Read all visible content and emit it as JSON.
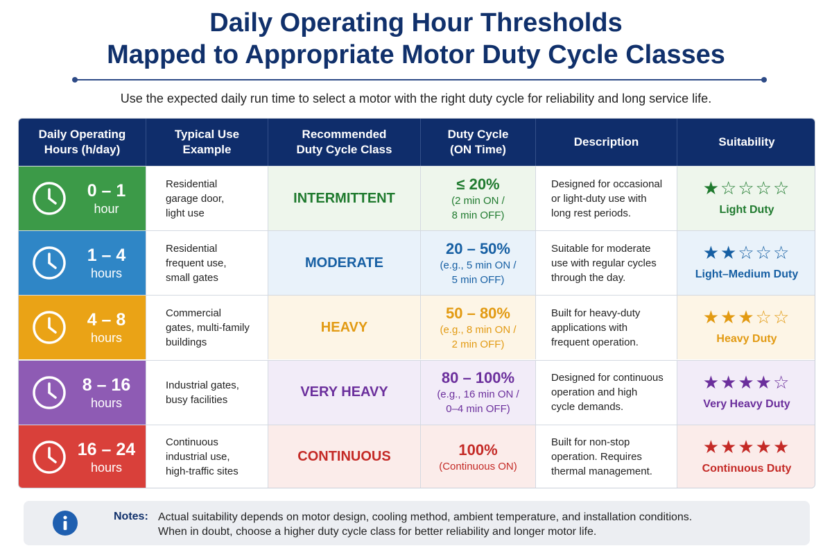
{
  "header": {
    "title_line1": "Daily Operating Hour Thresholds",
    "title_line2": "Mapped to Appropriate Motor Duty Cycle Classes",
    "subtitle": "Use the expected daily run time to select a motor with the right duty cycle for reliability and long service life."
  },
  "table": {
    "columns": [
      {
        "line1": "Daily Operating",
        "line2": "Hours (h/day)"
      },
      {
        "line1": "Typical Use",
        "line2": "Example"
      },
      {
        "line1": "Recommended",
        "line2": "Duty Cycle Class"
      },
      {
        "line1": "Duty Cycle",
        "line2": "(ON Time)"
      },
      {
        "line1": "Description",
        "line2": ""
      },
      {
        "line1": "Suitability",
        "line2": ""
      }
    ],
    "rows": [
      {
        "hours_range": "0 – 1",
        "hours_unit": "hour",
        "use": [
          "Residential",
          "garage door,",
          "light use"
        ],
        "class": "INTERMITTENT",
        "duty_value": "≤ 20%",
        "duty_sub": [
          "(2 min ON /",
          "8 min OFF)"
        ],
        "description": [
          "Designed for occasional",
          "or light-duty use with",
          "long rest periods."
        ],
        "stars_filled": 1,
        "stars_total": 5,
        "suitability": "Light Duty",
        "colors": {
          "band": "#3c9a48",
          "tint": "#eef6ec",
          "accent": "#1f7a2e"
        }
      },
      {
        "hours_range": "1 – 4",
        "hours_unit": "hours",
        "use": [
          "Residential",
          "frequent use,",
          "small gates"
        ],
        "class": "MODERATE",
        "duty_value": "20 – 50%",
        "duty_sub": [
          "(e.g., 5 min ON /",
          "5 min OFF)"
        ],
        "description": [
          "Suitable for moderate",
          "use with regular cycles",
          "through the day."
        ],
        "stars_filled": 2,
        "stars_total": 5,
        "suitability": "Light–Medium Duty",
        "colors": {
          "band": "#2f86c6",
          "tint": "#e9f2fa",
          "accent": "#165fa3"
        }
      },
      {
        "hours_range": "4 – 8",
        "hours_unit": "hours",
        "use": [
          "Commercial",
          "gates, multi-family",
          "buildings"
        ],
        "class": "HEAVY",
        "duty_value": "50 – 80%",
        "duty_sub": [
          "(e.g., 8 min ON /",
          "2 min OFF)"
        ],
        "description": [
          "Built for heavy-duty",
          "applications with",
          "frequent operation."
        ],
        "stars_filled": 3,
        "stars_total": 5,
        "suitability": "Heavy Duty",
        "colors": {
          "band": "#eaa316",
          "tint": "#fdf5e6",
          "accent": "#e29a12"
        }
      },
      {
        "hours_range": "8 – 16",
        "hours_unit": "hours",
        "use": [
          "Industrial gates,",
          "busy facilities"
        ],
        "class": "VERY HEAVY",
        "duty_value": "80 – 100%",
        "duty_sub": [
          "(e.g., 16 min ON /",
          "0–4 min OFF)"
        ],
        "description": [
          "Designed for continuous",
          "operation and high",
          "cycle demands."
        ],
        "stars_filled": 4,
        "stars_total": 5,
        "suitability": "Very Heavy Duty",
        "colors": {
          "band": "#8e5bb4",
          "tint": "#f2ecf8",
          "accent": "#6b2f9c"
        }
      },
      {
        "hours_range": "16 – 24",
        "hours_unit": "hours",
        "use": [
          "Continuous",
          "industrial use,",
          "high-traffic sites"
        ],
        "class": "CONTINUOUS",
        "duty_value": "100%",
        "duty_sub": [
          "(Continuous ON)"
        ],
        "description": [
          "Built for non-stop",
          "operation. Requires",
          "thermal management."
        ],
        "stars_filled": 5,
        "stars_total": 5,
        "suitability": "Continuous Duty",
        "colors": {
          "band": "#d9403a",
          "tint": "#fbecea",
          "accent": "#c42a26"
        }
      }
    ]
  },
  "notes": {
    "label": "Notes:",
    "lines": [
      "Actual suitability depends on motor design, cooling method, ambient temperature, and installation conditions.",
      "When in doubt, choose a higher duty cycle class for better reliability and longer motor life."
    ]
  },
  "icons": {
    "hours": "clock-icon",
    "notes": "info-icon",
    "rating": "star-icon"
  }
}
